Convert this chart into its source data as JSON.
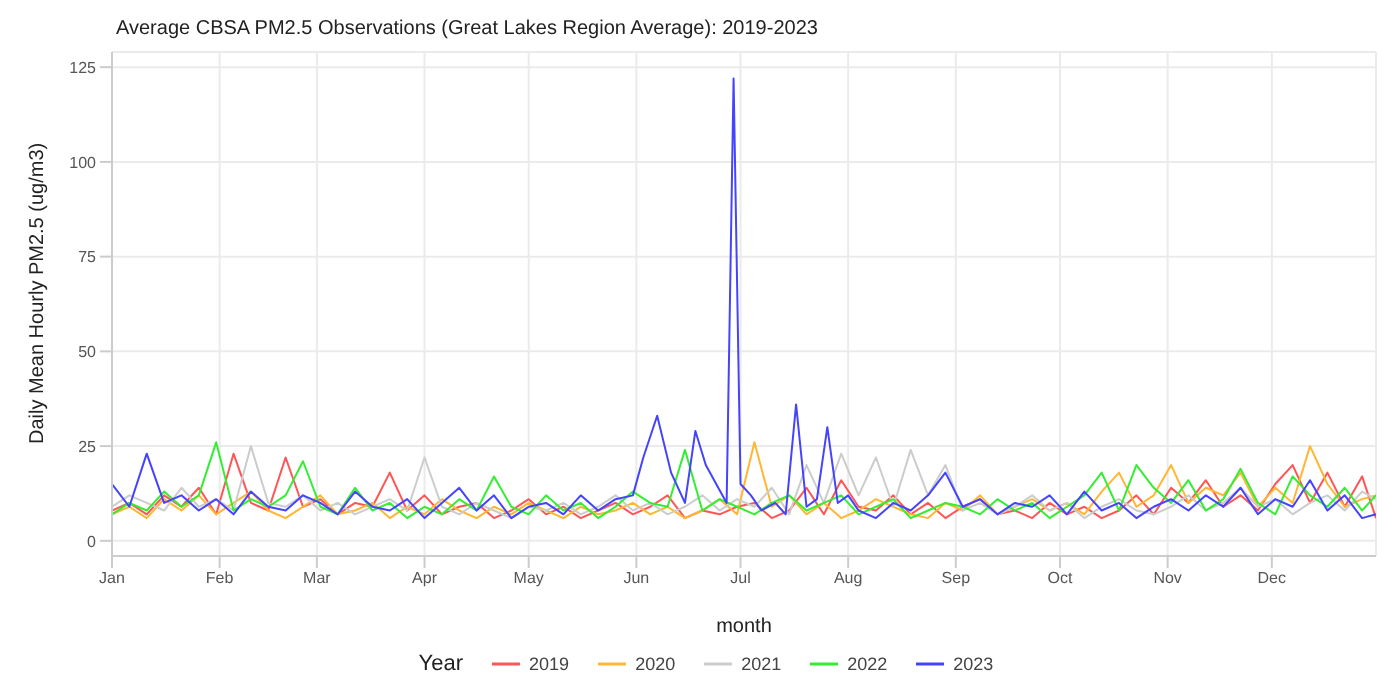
{
  "chart_data": {
    "type": "line",
    "title": "Average CBSA PM2.5 Observations (Great Lakes Region Average): 2019-2023",
    "xlabel": "month",
    "ylabel": "Daily Mean Hourly PM2.5 (ug/m3)",
    "legend_title": "Year",
    "legend": "bottom",
    "grid": true,
    "marker": "none",
    "line_style": "solid",
    "x": [
      "--01-01",
      "--01-06",
      "--01-11",
      "--01-16",
      "--01-21",
      "--01-26",
      "--01-31",
      "--02-05",
      "--02-10",
      "--02-15",
      "--02-20",
      "--02-25",
      "--03-02",
      "--03-07",
      "--03-12",
      "--03-17",
      "--03-22",
      "--03-27",
      "--04-01",
      "--04-06",
      "--04-11",
      "--04-16",
      "--04-21",
      "--04-26",
      "--05-01",
      "--05-06",
      "--05-11",
      "--05-16",
      "--05-21",
      "--05-26",
      "--05-31",
      "--06-05",
      "--06-10",
      "--06-15",
      "--06-20",
      "--06-25",
      "--06-30",
      "--07-05",
      "--07-10",
      "--07-15",
      "--07-20",
      "--07-25",
      "--07-30",
      "--08-04",
      "--08-09",
      "--08-14",
      "--08-19",
      "--08-24",
      "--08-29",
      "--09-03",
      "--09-08",
      "--09-13",
      "--09-18",
      "--09-23",
      "--09-28",
      "--10-03",
      "--10-08",
      "--10-13",
      "--10-18",
      "--10-23",
      "--10-28",
      "--11-02",
      "--11-07",
      "--11-12",
      "--11-17",
      "--11-22",
      "--11-27",
      "--12-02",
      "--12-07",
      "--12-12",
      "--12-17",
      "--12-22",
      "--12-27",
      "--12-31"
    ],
    "xlim": [
      "--01-01",
      "--12-31"
    ],
    "xticks": [
      {
        "value": "--01-01",
        "label": "Jan"
      },
      {
        "value": "--02-01",
        "label": "Feb"
      },
      {
        "value": "--03-01",
        "label": "Mar"
      },
      {
        "value": "--04-01",
        "label": "Apr"
      },
      {
        "value": "--05-01",
        "label": "May"
      },
      {
        "value": "--06-01",
        "label": "Jun"
      },
      {
        "value": "--07-01",
        "label": "Jul"
      },
      {
        "value": "--08-01",
        "label": "Aug"
      },
      {
        "value": "--09-01",
        "label": "Sep"
      },
      {
        "value": "--10-01",
        "label": "Oct"
      },
      {
        "value": "--11-01",
        "label": "Nov"
      },
      {
        "value": "--12-01",
        "label": "Dec"
      }
    ],
    "ylim": [
      -4,
      129
    ],
    "yticks": [
      0,
      25,
      50,
      75,
      100,
      125
    ],
    "series": [
      {
        "name": "2019",
        "color": "#ff5555",
        "values": [
          8,
          10,
          7,
          12,
          9,
          14,
          7,
          23,
          10,
          8,
          22,
          9,
          11,
          7,
          10,
          9,
          18,
          8,
          12,
          7,
          9,
          10,
          6,
          8,
          11,
          7,
          9,
          6,
          8,
          10,
          7,
          9,
          12,
          6,
          8,
          7,
          9,
          10,
          6,
          8,
          14,
          7,
          16,
          9,
          8,
          12,
          7,
          10,
          6,
          9,
          11,
          7,
          8,
          6,
          10,
          7,
          9,
          6,
          8,
          12,
          7,
          14,
          10,
          16,
          9,
          12,
          8,
          15,
          20,
          10,
          18,
          9,
          17,
          6
        ]
      },
      {
        "name": "2020",
        "color": "#ffb733",
        "values": [
          7,
          9,
          6,
          11,
          8,
          12,
          7,
          10,
          13,
          8,
          6,
          9,
          12,
          7,
          8,
          10,
          6,
          9,
          7,
          11,
          8,
          6,
          9,
          7,
          10,
          8,
          6,
          9,
          7,
          8,
          10,
          7,
          9,
          6,
          8,
          11,
          7,
          26,
          9,
          12,
          7,
          10,
          6,
          8,
          11,
          9,
          7,
          6,
          10,
          8,
          12,
          7,
          9,
          11,
          8,
          10,
          7,
          13,
          18,
          9,
          12,
          20,
          10,
          14,
          12,
          18,
          9,
          14,
          10,
          25,
          15,
          9,
          11,
          12
        ]
      },
      {
        "name": "2021",
        "color": "#cccccc",
        "values": [
          9,
          12,
          10,
          8,
          14,
          9,
          11,
          8,
          25,
          10,
          9,
          12,
          8,
          10,
          7,
          9,
          11,
          8,
          22,
          9,
          7,
          10,
          8,
          6,
          9,
          8,
          10,
          7,
          9,
          12,
          8,
          10,
          7,
          9,
          12,
          8,
          11,
          9,
          14,
          7,
          20,
          10,
          23,
          12,
          22,
          9,
          24,
          12,
          20,
          8,
          10,
          7,
          9,
          12,
          8,
          10,
          6,
          9,
          11,
          8,
          7,
          9,
          12,
          8,
          10,
          14,
          9,
          11,
          7,
          10,
          12,
          8,
          13,
          11
        ]
      },
      {
        "name": "2022",
        "color": "#33ee33",
        "values": [
          7,
          10,
          8,
          13,
          9,
          12,
          26,
          8,
          11,
          9,
          12,
          21,
          9,
          7,
          14,
          8,
          10,
          6,
          9,
          7,
          11,
          8,
          17,
          9,
          7,
          12,
          8,
          10,
          6,
          9,
          13,
          10,
          9,
          24,
          8,
          11,
          9,
          7,
          10,
          12,
          8,
          10,
          12,
          7,
          9,
          11,
          6,
          8,
          10,
          9,
          7,
          11,
          8,
          10,
          6,
          9,
          12,
          18,
          8,
          20,
          14,
          10,
          16,
          8,
          11,
          19,
          10,
          7,
          17,
          12,
          9,
          14,
          8,
          12
        ]
      },
      {
        "name": "2023",
        "color": "#4444ff",
        "x": [
          "--01-01",
          "--01-06",
          "--01-11",
          "--01-16",
          "--01-21",
          "--01-26",
          "--01-31",
          "--02-05",
          "--02-10",
          "--02-15",
          "--02-20",
          "--02-25",
          "--03-02",
          "--03-07",
          "--03-12",
          "--03-17",
          "--03-22",
          "--03-27",
          "--04-01",
          "--04-06",
          "--04-11",
          "--04-16",
          "--04-21",
          "--04-26",
          "--05-01",
          "--05-06",
          "--05-11",
          "--05-16",
          "--05-21",
          "--05-26",
          "--05-31",
          "--06-03",
          "--06-07",
          "--06-11",
          "--06-15",
          "--06-18",
          "--06-21",
          "--06-24",
          "--06-27",
          "--06-29",
          "--07-01",
          "--07-04",
          "--07-07",
          "--07-11",
          "--07-14",
          "--07-17",
          "--07-20",
          "--07-23",
          "--07-26",
          "--07-29",
          "--08-01",
          "--08-04",
          "--08-09",
          "--08-14",
          "--08-19",
          "--08-24",
          "--08-29",
          "--09-03",
          "--09-08",
          "--09-13",
          "--09-18",
          "--09-23",
          "--09-28",
          "--10-03",
          "--10-08",
          "--10-13",
          "--10-18",
          "--10-23",
          "--10-28",
          "--11-02",
          "--11-07",
          "--11-12",
          "--11-17",
          "--11-22",
          "--11-27",
          "--12-02",
          "--12-07",
          "--12-12",
          "--12-17",
          "--12-22",
          "--12-27",
          "--12-31"
        ],
        "values": [
          15,
          9,
          23,
          10,
          12,
          8,
          11,
          7,
          13,
          9,
          8,
          12,
          10,
          7,
          13,
          9,
          8,
          11,
          6,
          10,
          14,
          8,
          12,
          6,
          9,
          10,
          7,
          12,
          8,
          11,
          12,
          22,
          33,
          18,
          10,
          29,
          20,
          15,
          10,
          122,
          15,
          12,
          8,
          10,
          7,
          36,
          9,
          11,
          30,
          10,
          12,
          8,
          6,
          10,
          8,
          12,
          18,
          9,
          11,
          7,
          10,
          9,
          12,
          7,
          13,
          8,
          10,
          6,
          9,
          11,
          8,
          12,
          9,
          14,
          7,
          11,
          9,
          16,
          8,
          12,
          6,
          7
        ]
      }
    ]
  }
}
